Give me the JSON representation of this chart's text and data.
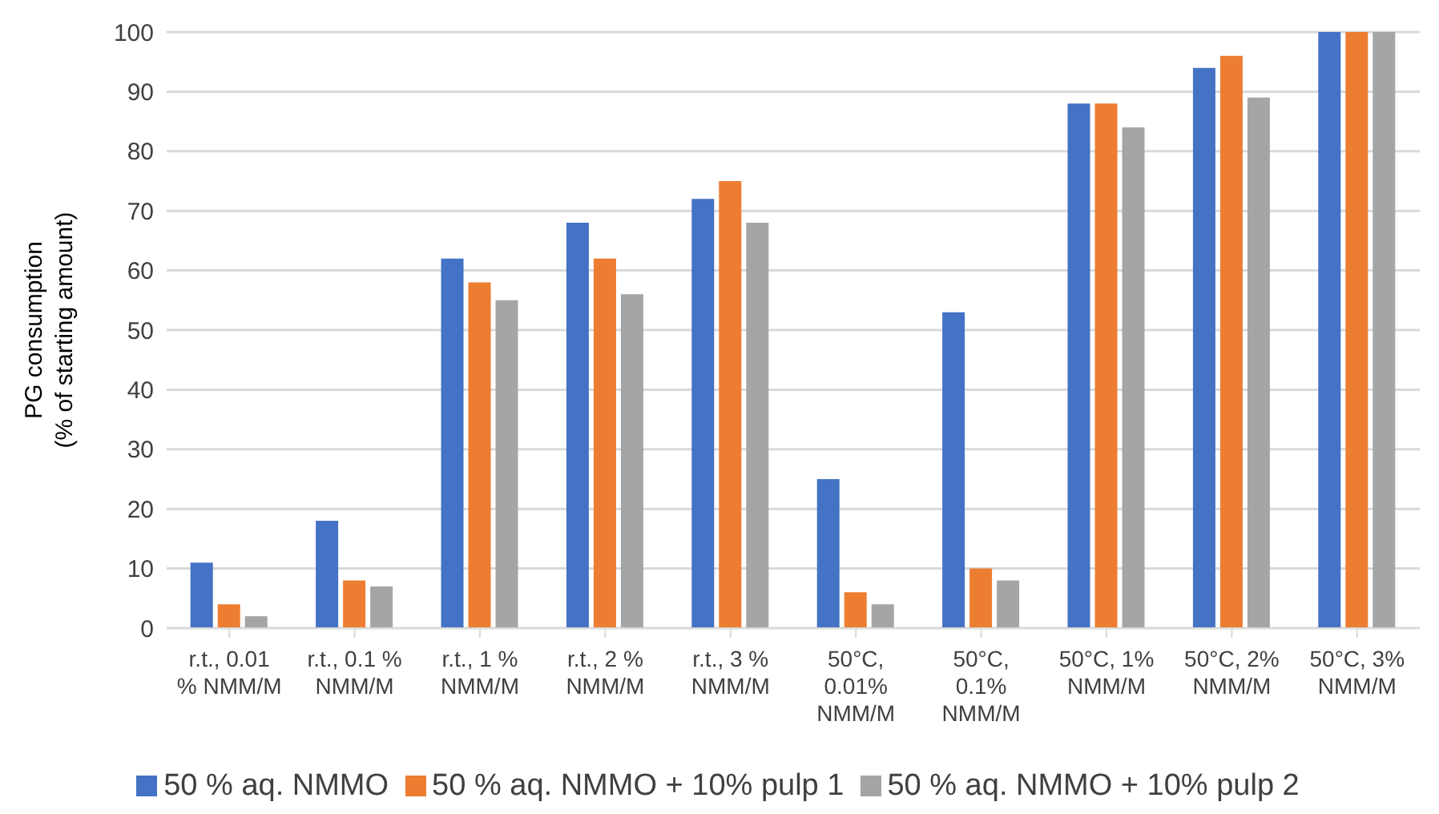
{
  "chart_data": {
    "type": "bar",
    "ylabel": "PG consumption (% of starting amount)",
    "categories": [
      "r.t., 0.01 % NMM/M",
      "r.t., 0.1 % NMM/M",
      "r.t., 1 % NMM/M",
      "r.t., 2 % NMM/M",
      "r.t., 3 % NMM/M",
      "50°C, 0.01% NMM/M",
      "50°C, 0.1% NMM/M",
      "50°C, 1% NMM/M",
      "50°C, 2% NMM/M",
      "50°C, 3% NMM/M"
    ],
    "series": [
      {
        "name": "50 % aq. NMMO",
        "color": "#4472c4",
        "values": [
          11,
          18,
          62,
          68,
          72,
          25,
          53,
          88,
          94,
          100
        ]
      },
      {
        "name": "50 % aq. NMMO + 10% pulp 1",
        "color": "#ed7d31",
        "values": [
          4,
          8,
          58,
          62,
          75,
          6,
          10,
          88,
          96,
          100
        ]
      },
      {
        "name": "50 % aq. NMMO + 10% pulp 2",
        "color": "#a5a5a5",
        "values": [
          2,
          7,
          55,
          56,
          68,
          4,
          8,
          84,
          89,
          100
        ]
      }
    ],
    "ylim": [
      0,
      100
    ],
    "yticks": [
      0,
      10,
      20,
      30,
      40,
      50,
      60,
      70,
      80,
      90,
      100
    ],
    "grid": "y",
    "legend": "bottom"
  }
}
